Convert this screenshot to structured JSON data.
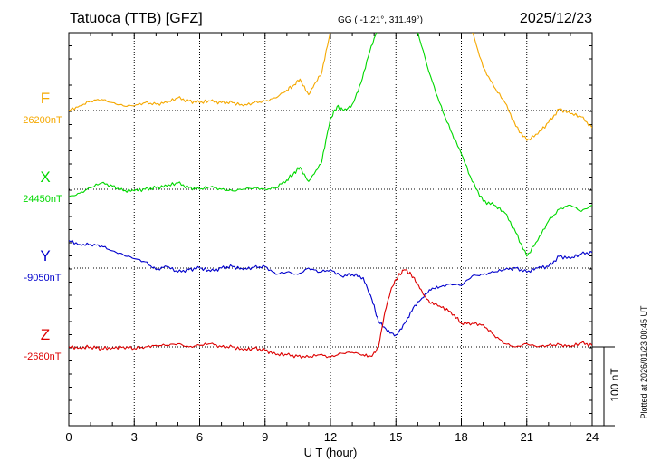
{
  "header": {
    "station": "Tatuoca (TTB)  [GFZ]",
    "coords": "GG ( -1.21°, 311.49°)",
    "date": "2025/12/23"
  },
  "footer": {
    "xlabel": "U T (hour)",
    "plotted": "Plotted at 2026/01/23 00:45 UT",
    "scale_label": "100 nT"
  },
  "colors": {
    "F": "#f5a800",
    "X": "#00d800",
    "Y": "#0000cc",
    "Z": "#dd0000"
  },
  "chart_data": {
    "type": "line",
    "x_ticks": [
      0,
      3,
      6,
      9,
      12,
      15,
      18,
      21,
      24
    ],
    "xlim": [
      0,
      24
    ],
    "xlabel": "U T (hour)",
    "grid": true,
    "scale_bar_nT": 100,
    "series": [
      {
        "name": "F",
        "baseline_label": "26200nT",
        "baseline": 26200,
        "x": [
          0,
          0.5,
          1,
          1.5,
          2,
          2.5,
          3,
          3.5,
          4,
          4.5,
          5,
          5.5,
          6,
          6.5,
          7,
          7.5,
          8,
          8.5,
          9,
          9.5,
          10,
          10.3,
          10.6,
          11,
          11.3,
          11.6,
          12,
          12.3,
          12.6,
          13,
          13.4,
          13.8,
          14.2,
          14.5,
          15,
          15.5,
          16,
          16.5,
          17,
          17.5,
          18,
          18.5,
          19,
          19.5,
          20,
          20.5,
          21,
          21.5,
          22,
          22.5,
          23,
          23.5,
          24
        ],
        "values": [
          26200,
          26206,
          26212,
          26214,
          26210,
          26206,
          26206,
          26210,
          26208,
          26210,
          26216,
          26212,
          26210,
          26212,
          26210,
          26210,
          26206,
          26210,
          26212,
          26216,
          26226,
          26232,
          26240,
          26220,
          26235,
          26248,
          26300,
          26315,
          26310,
          26318,
          26333,
          26370,
          26405,
          26440,
          26490,
          26470,
          26440,
          26410,
          26385,
          26355,
          26330,
          26300,
          26255,
          26230,
          26210,
          26180,
          26162,
          26170,
          26185,
          26202,
          26196,
          26192,
          26178
        ]
      },
      {
        "name": "X",
        "baseline_label": "24450nT",
        "baseline": 24450,
        "x": [
          0,
          0.5,
          1,
          1.5,
          2,
          2.5,
          3,
          3.5,
          4,
          4.5,
          5,
          5.5,
          6,
          6.5,
          7,
          7.5,
          8,
          8.5,
          9,
          9.5,
          10,
          10.3,
          10.6,
          11,
          11.3,
          11.6,
          12,
          12.3,
          12.6,
          13,
          13.4,
          13.8,
          14.2,
          14.5,
          15,
          15.3,
          15.6,
          16,
          16.5,
          17,
          17.5,
          18,
          18.5,
          19,
          19.5,
          20,
          20.5,
          21,
          21.5,
          22,
          22.5,
          23,
          23.5,
          24
        ],
        "values": [
          24440,
          24445,
          24452,
          24458,
          24454,
          24448,
          24448,
          24450,
          24452,
          24454,
          24458,
          24452,
          24450,
          24453,
          24450,
          24448,
          24450,
          24452,
          24450,
          24452,
          24462,
          24470,
          24478,
          24460,
          24472,
          24485,
          24540,
          24555,
          24550,
          24558,
          24585,
          24625,
          24655,
          24672,
          24705,
          24670,
          24680,
          24650,
          24600,
          24560,
          24525,
          24495,
          24460,
          24435,
          24430,
          24420,
          24395,
          24365,
          24385,
          24410,
          24425,
          24430,
          24422,
          24430
        ]
      },
      {
        "name": "Y",
        "baseline_label": "-9050nT",
        "baseline": -9050,
        "x": [
          0,
          0.5,
          1,
          1.5,
          2,
          2.5,
          3,
          3.5,
          4,
          4.5,
          5,
          5.5,
          6,
          6.5,
          7,
          7.5,
          8,
          8.5,
          9,
          9.5,
          10,
          10.5,
          11,
          11.5,
          12,
          12.5,
          13,
          13.5,
          13.9,
          14.2,
          14.6,
          15,
          15.4,
          15.8,
          16.2,
          16.6,
          17,
          17.5,
          18,
          18.5,
          19,
          19.5,
          20,
          20.5,
          21,
          21.5,
          22,
          22.5,
          23,
          23.5,
          24
        ],
        "values": [
          -9015,
          -9020,
          -9020,
          -9022,
          -9028,
          -9033,
          -9038,
          -9042,
          -9052,
          -9048,
          -9055,
          -9052,
          -9050,
          -9054,
          -9050,
          -9048,
          -9052,
          -9049,
          -9048,
          -9058,
          -9055,
          -9058,
          -9050,
          -9055,
          -9052,
          -9060,
          -9058,
          -9062,
          -9090,
          -9118,
          -9130,
          -9135,
          -9120,
          -9100,
          -9088,
          -9078,
          -9074,
          -9070,
          -9072,
          -9060,
          -9058,
          -9055,
          -9052,
          -9050,
          -9055,
          -9050,
          -9048,
          -9035,
          -9038,
          -9032,
          -9030
        ]
      },
      {
        "name": "Z",
        "baseline_label": "-2680nT",
        "baseline": -2680,
        "x": [
          0,
          0.5,
          1,
          1.5,
          2,
          2.5,
          3,
          3.5,
          4,
          4.5,
          5,
          5.5,
          6,
          6.5,
          7,
          7.5,
          8,
          8.5,
          9,
          9.5,
          10,
          10.5,
          11,
          11.5,
          12,
          12.5,
          13,
          13.5,
          13.9,
          14.2,
          14.5,
          14.8,
          15.1,
          15.4,
          15.7,
          16,
          16.3,
          16.6,
          17,
          17.5,
          18,
          18.5,
          19,
          19.5,
          20,
          20.5,
          21,
          21.5,
          22,
          22.5,
          23,
          23.5,
          24
        ],
        "values": [
          -2680,
          -2681,
          -2680,
          -2682,
          -2681,
          -2680,
          -2682,
          -2680,
          -2678,
          -2678,
          -2676,
          -2680,
          -2678,
          -2676,
          -2680,
          -2680,
          -2684,
          -2682,
          -2684,
          -2690,
          -2690,
          -2692,
          -2693,
          -2690,
          -2693,
          -2688,
          -2687,
          -2690,
          -2692,
          -2680,
          -2635,
          -2605,
          -2590,
          -2582,
          -2588,
          -2600,
          -2615,
          -2625,
          -2628,
          -2635,
          -2650,
          -2650,
          -2652,
          -2665,
          -2676,
          -2680,
          -2676,
          -2680,
          -2678,
          -2677,
          -2680,
          -2675,
          -2678
        ]
      }
    ]
  }
}
